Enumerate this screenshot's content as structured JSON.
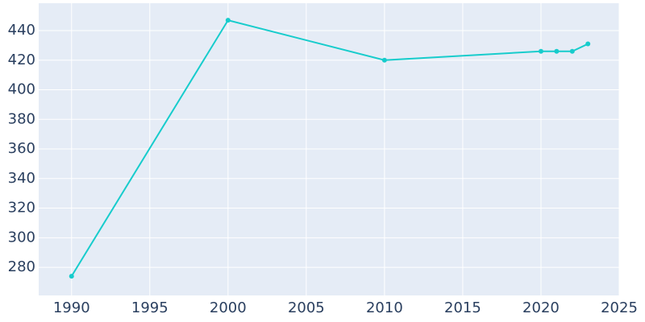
{
  "chart_data": {
    "type": "line",
    "x": [
      1990,
      2000,
      2010,
      2020,
      2021,
      2022,
      2023
    ],
    "series": [
      {
        "color": "#17cccc",
        "values": [
          274,
          447,
          420,
          426,
          426,
          426,
          431
        ]
      }
    ],
    "xlim": [
      1987.9,
      2025
    ],
    "xticks": [
      1990,
      1995,
      2000,
      2005,
      2010,
      2015,
      2020,
      2025
    ],
    "ylim": [
      261,
      458.5
    ],
    "yticks": [
      280,
      300,
      320,
      340,
      360,
      380,
      400,
      420,
      440
    ],
    "grid": true
  }
}
